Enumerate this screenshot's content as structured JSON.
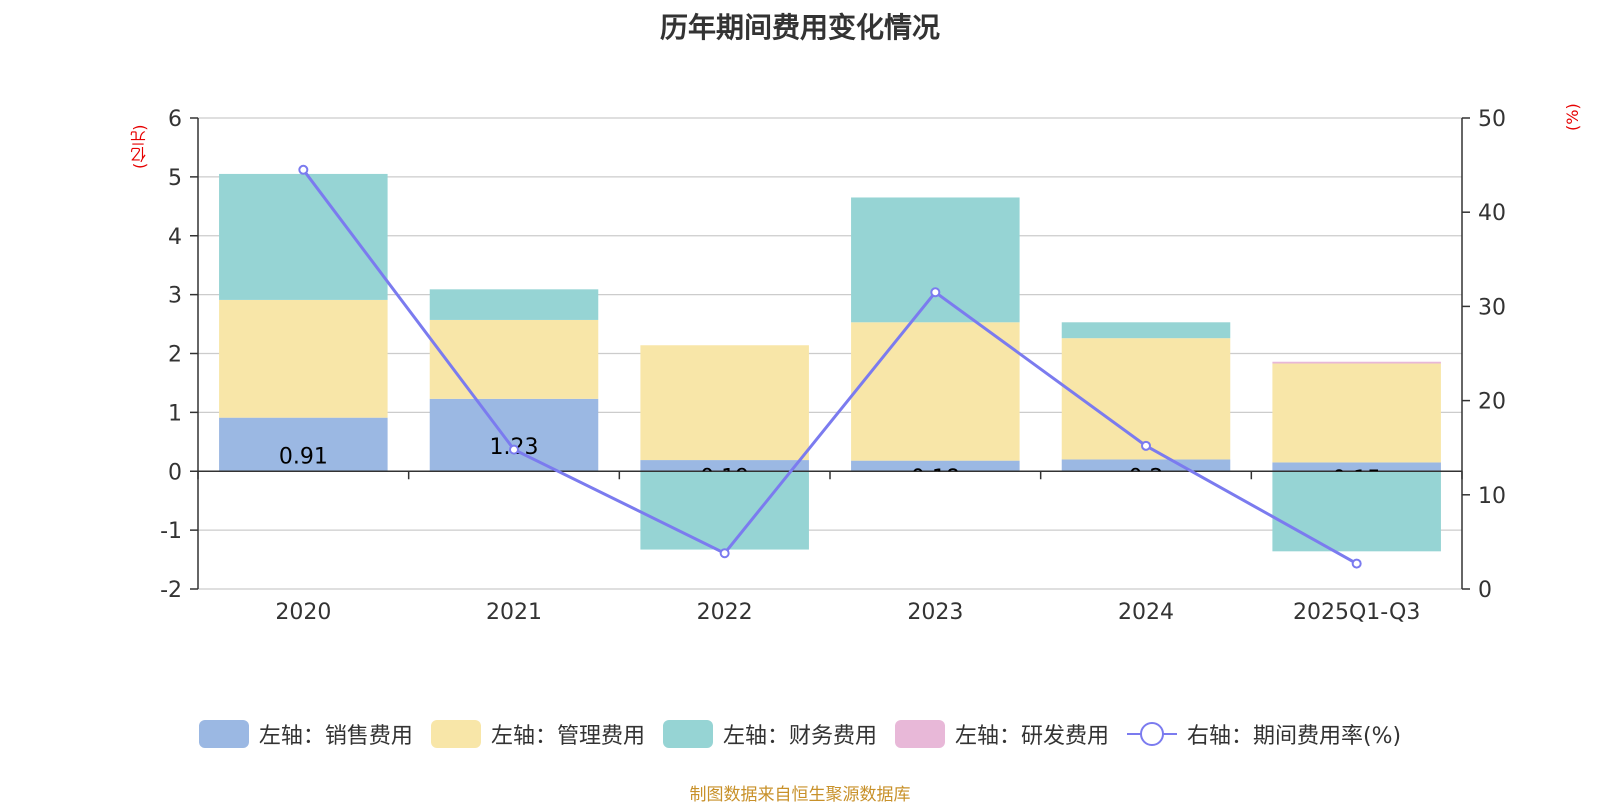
{
  "chart_data": {
    "type": "bar",
    "title": "历年期间费用变化情况",
    "categories": [
      "2020",
      "2021",
      "2022",
      "2023",
      "2024",
      "2025Q1-Q3"
    ],
    "left_axis": {
      "unit": "(亿元)",
      "ylim": [
        -2,
        6
      ],
      "ticks": [
        -2,
        -1,
        0,
        1,
        2,
        3,
        4,
        5,
        6
      ]
    },
    "right_axis": {
      "unit": "(%)",
      "ylim": [
        0,
        50
      ],
      "ticks": [
        0,
        10,
        20,
        30,
        40,
        50
      ]
    },
    "series": [
      {
        "name": "左轴：销售费用",
        "type": "bar",
        "axis": "left",
        "color": "#9bb8e3",
        "values": [
          0.91,
          1.23,
          0.19,
          0.18,
          0.2,
          0.15
        ],
        "labels": [
          "0.91",
          "1.23",
          "0.19",
          "0.18",
          "0.2",
          "0.15"
        ]
      },
      {
        "name": "左轴：管理费用",
        "type": "bar",
        "axis": "left",
        "color": "#f8e6a8",
        "values": [
          2.0,
          1.34,
          1.95,
          2.35,
          2.06,
          1.68
        ]
      },
      {
        "name": "左轴：财务费用",
        "type": "bar",
        "axis": "left",
        "color": "#96d4d4",
        "values": [
          2.14,
          0.52,
          -1.33,
          2.12,
          0.27,
          -1.36
        ]
      },
      {
        "name": "左轴：研发费用",
        "type": "bar",
        "axis": "left",
        "color": "#e8b8d8",
        "values": [
          0,
          0,
          0,
          0,
          0,
          0.03
        ]
      },
      {
        "name": "右轴：期间费用率(%)",
        "type": "line",
        "axis": "right",
        "color": "#7b7bef",
        "values": [
          44.5,
          14.8,
          3.8,
          31.5,
          15.2,
          2.7
        ]
      }
    ]
  },
  "source_note": "制图数据来自恒生聚源数据库"
}
